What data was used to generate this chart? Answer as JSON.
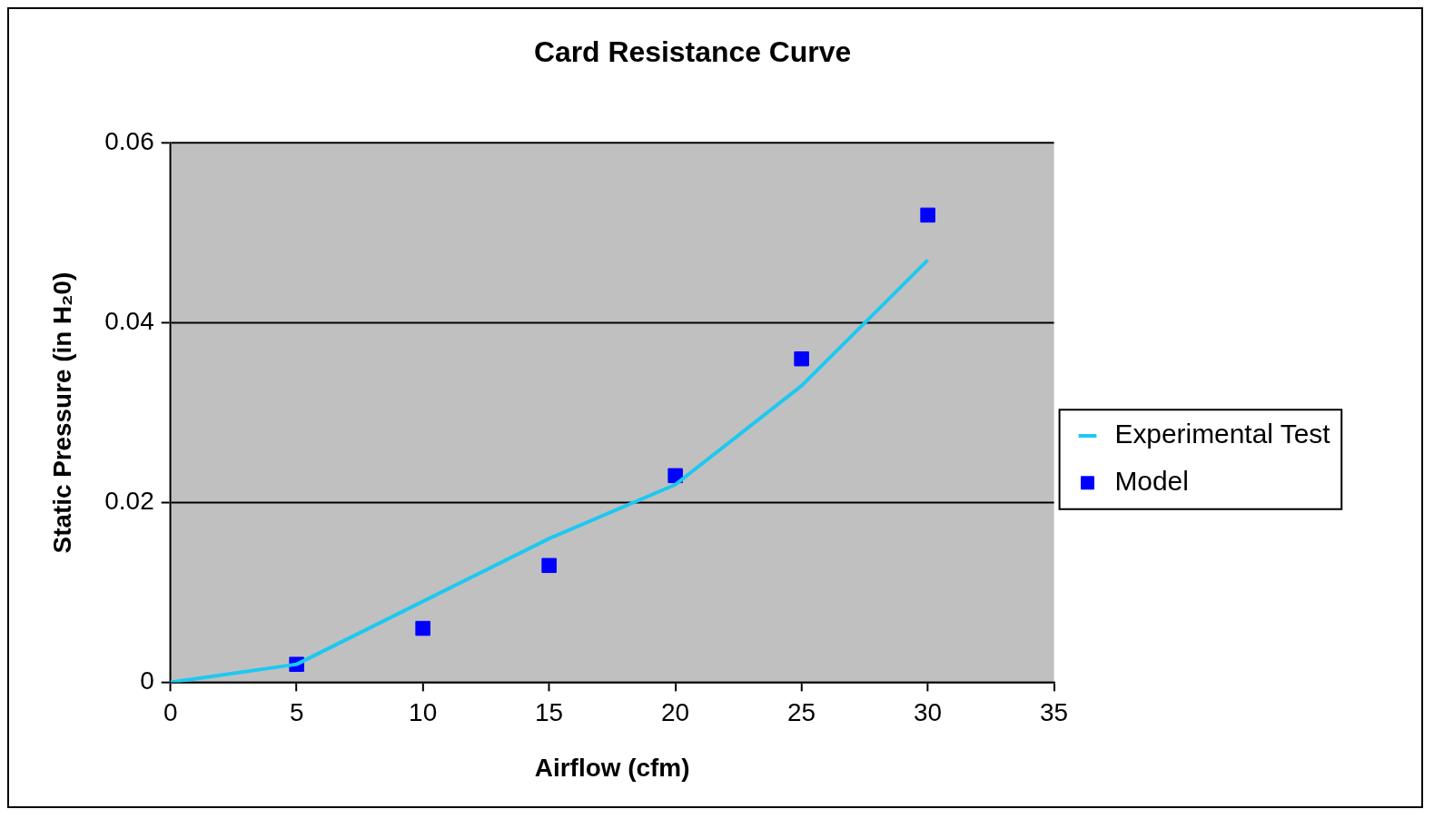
{
  "chart_data": {
    "type": "line",
    "title": "Card Resistance Curve",
    "xlabel": "Airflow (cfm)",
    "ylabel": "Static Pressure (in H₂0)",
    "series": [
      {
        "name": "Experimental Test",
        "type": "line",
        "color": "#1ec8f0",
        "x": [
          0,
          5,
          10,
          15,
          20,
          25,
          30
        ],
        "values": [
          0,
          0.002,
          0.009,
          0.016,
          0.022,
          0.033,
          0.047
        ]
      },
      {
        "name": "Model",
        "type": "scatter",
        "color": "#0000ff",
        "marker": "square",
        "x": [
          5,
          10,
          15,
          20,
          25,
          30
        ],
        "values": [
          0.002,
          0.006,
          0.013,
          0.023,
          0.036,
          0.052
        ]
      }
    ],
    "xlim": [
      0,
      35
    ],
    "xticks": [
      0,
      5,
      10,
      15,
      20,
      25,
      30,
      35
    ],
    "ylim": [
      0,
      0.06
    ],
    "yticks": [
      0,
      0.02,
      0.04,
      0.06
    ],
    "grid": "y",
    "legend": "right"
  }
}
